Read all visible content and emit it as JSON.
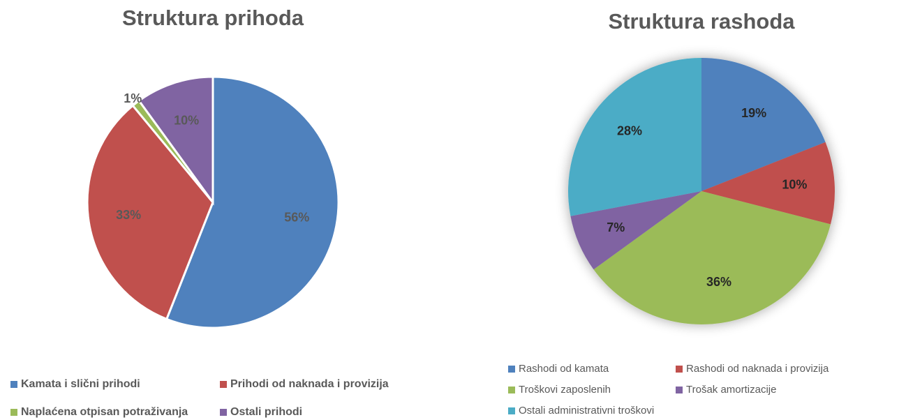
{
  "chart_data": [
    {
      "type": "pie",
      "title": "Struktura prihoda",
      "categories": [
        "Kamata i slični prihodi",
        "Prihodi od naknada i provizija",
        "Naplaćena otpisan potraživanja",
        "Ostali prihodi"
      ],
      "values": [
        56,
        33,
        1,
        10
      ],
      "value_labels": [
        "56%",
        "33%",
        "1%",
        "10%"
      ],
      "colors": [
        "#4f81bd",
        "#c0504d",
        "#9bbb59",
        "#8064a2"
      ]
    },
    {
      "type": "pie",
      "title": "Struktura rashoda",
      "categories": [
        "Rashodi od kamata",
        "Rashodi od naknada i provizija",
        "Troškovi zaposlenih",
        "Trošak amortizacije",
        "Ostali administrativni troškovi"
      ],
      "values": [
        19,
        10,
        36,
        7,
        28
      ],
      "value_labels": [
        "19%",
        "10%",
        "36%",
        "7%",
        "28%"
      ],
      "colors": [
        "#4f81bd",
        "#c0504d",
        "#9bbb59",
        "#8064a2",
        "#4bacc6"
      ]
    }
  ]
}
